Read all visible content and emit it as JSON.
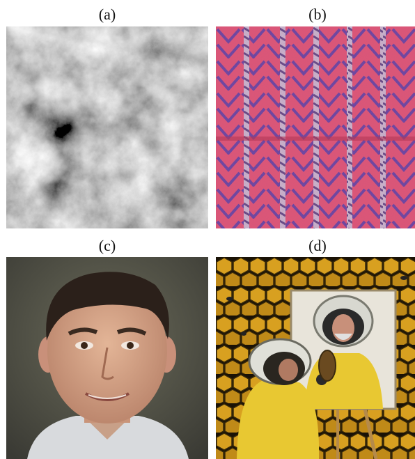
{
  "panels": [
    {
      "label": "(a)",
      "content": "grayscale-noise-texture"
    },
    {
      "label": "(b)",
      "content": "pink-fabric-texture"
    },
    {
      "label": "(c)",
      "content": "face-photo"
    },
    {
      "label": "(d)",
      "content": "beekeeper-painting"
    }
  ],
  "colors": {
    "fabric_pink": "#e05577",
    "fabric_blue": "#4a3fb0",
    "honey_yellow": "#d8a020",
    "suit_yellow": "#e8c832"
  }
}
